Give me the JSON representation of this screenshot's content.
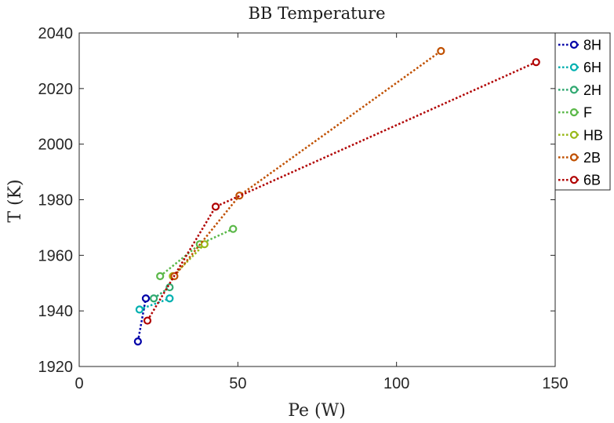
{
  "chart_data": {
    "type": "line",
    "title": "BB Temperature",
    "xlabel": "Pe (W)",
    "ylabel": "T (K)",
    "xlim": [
      0,
      150
    ],
    "ylim": [
      1920,
      2040
    ],
    "xticks": [
      0,
      50,
      100,
      150
    ],
    "yticks": [
      1920,
      1940,
      1960,
      1980,
      2000,
      2020,
      2040
    ],
    "grid": false,
    "legend_position": "top-right, outside",
    "line_style": "dotted",
    "marker": "circle",
    "series": [
      {
        "name": "8H",
        "color": "#0000a8",
        "points": [
          [
            18.5,
            1929
          ],
          [
            21.0,
            1944.5
          ]
        ]
      },
      {
        "name": "6H",
        "color": "#00b0b0",
        "points": [
          [
            19.0,
            1940.5
          ],
          [
            28.5,
            1944.5
          ]
        ]
      },
      {
        "name": "2H",
        "color": "#30a870",
        "points": [
          [
            23.5,
            1944.5
          ],
          [
            28.5,
            1948.5
          ]
        ]
      },
      {
        "name": "F",
        "color": "#5ab848",
        "points": [
          [
            25.5,
            1952.5
          ],
          [
            38.0,
            1964
          ],
          [
            48.5,
            1969.5
          ]
        ]
      },
      {
        "name": "HB",
        "color": "#98b818",
        "points": [
          [
            39.5,
            1964
          ],
          [
            29.5,
            1952.5
          ]
        ]
      },
      {
        "name": "2B",
        "color": "#c05000",
        "points": [
          [
            30.0,
            1952.5
          ],
          [
            50.5,
            1981.5
          ],
          [
            114.0,
            2033.5
          ]
        ]
      },
      {
        "name": "6B",
        "color": "#b00000",
        "points": [
          [
            21.5,
            1936.5
          ],
          [
            43.0,
            1977.5
          ],
          [
            144.0,
            2029.5
          ]
        ]
      }
    ]
  }
}
